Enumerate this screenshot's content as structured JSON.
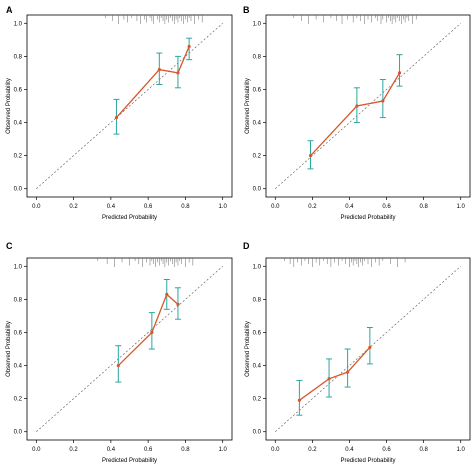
{
  "colors": {
    "line": "#d9572b",
    "errorbar": "#2aa6a1",
    "reference": "#555555",
    "axis": "#000000",
    "rug": "#666666"
  },
  "chart_data": [
    {
      "panel": "A",
      "type": "calibration",
      "xlabel": "Predicted Probability",
      "ylabel": "Observed Probability",
      "xlim": [
        -0.05,
        1.05
      ],
      "ylim": [
        -0.05,
        1.05
      ],
      "xticks": [
        "0.0",
        "0.2",
        "0.4",
        "0.6",
        "0.8",
        "1.0"
      ],
      "yticks": [
        "0.0",
        "0.2",
        "0.4",
        "0.6",
        "0.8",
        "1.0"
      ],
      "reference_line": "diagonal",
      "points": [
        {
          "x": 0.43,
          "y": 0.43,
          "lower": 0.33,
          "upper": 0.54
        },
        {
          "x": 0.66,
          "y": 0.72,
          "lower": 0.63,
          "upper": 0.82
        },
        {
          "x": 0.76,
          "y": 0.7,
          "lower": 0.61,
          "upper": 0.8
        },
        {
          "x": 0.82,
          "y": 0.86,
          "lower": 0.78,
          "upper": 0.91
        }
      ],
      "rug": [
        0.37,
        0.41,
        0.44,
        0.47,
        0.49,
        0.51,
        0.54,
        0.56,
        0.58,
        0.59,
        0.61,
        0.62,
        0.63,
        0.65,
        0.66,
        0.67,
        0.68,
        0.69,
        0.7,
        0.71,
        0.72,
        0.73,
        0.74,
        0.75,
        0.76,
        0.77,
        0.78,
        0.79,
        0.8,
        0.81,
        0.82,
        0.83,
        0.85,
        0.87,
        0.89
      ]
    },
    {
      "panel": "B",
      "type": "calibration",
      "xlabel": "Predicted Probability",
      "ylabel": "Observed Probability",
      "xlim": [
        -0.05,
        1.05
      ],
      "ylim": [
        -0.05,
        1.05
      ],
      "xticks": [
        "0.0",
        "0.2",
        "0.4",
        "0.6",
        "0.8",
        "1.0"
      ],
      "yticks": [
        "0.0",
        "0.2",
        "0.4",
        "0.6",
        "0.8",
        "1.0"
      ],
      "reference_line": "diagonal",
      "points": [
        {
          "x": 0.19,
          "y": 0.2,
          "lower": 0.12,
          "upper": 0.29
        },
        {
          "x": 0.44,
          "y": 0.5,
          "lower": 0.4,
          "upper": 0.61
        },
        {
          "x": 0.58,
          "y": 0.53,
          "lower": 0.43,
          "upper": 0.66
        },
        {
          "x": 0.67,
          "y": 0.7,
          "lower": 0.62,
          "upper": 0.81
        }
      ],
      "rug": [
        0.1,
        0.14,
        0.18,
        0.22,
        0.26,
        0.3,
        0.33,
        0.36,
        0.39,
        0.42,
        0.44,
        0.46,
        0.48,
        0.5,
        0.52,
        0.54,
        0.55,
        0.57,
        0.58,
        0.6,
        0.61,
        0.62,
        0.63,
        0.64,
        0.65,
        0.66,
        0.67,
        0.68,
        0.69,
        0.7,
        0.71,
        0.72,
        0.74,
        0.76
      ]
    },
    {
      "panel": "C",
      "type": "calibration",
      "xlabel": "Predicted Probability",
      "ylabel": "Observed Probability",
      "xlim": [
        -0.05,
        1.05
      ],
      "ylim": [
        -0.05,
        1.05
      ],
      "xticks": [
        "0.0",
        "0.2",
        "0.4",
        "0.6",
        "0.8",
        "1.0"
      ],
      "yticks": [
        "0.0",
        "0.2",
        "0.4",
        "0.6",
        "0.8",
        "1.0"
      ],
      "reference_line": "diagonal",
      "points": [
        {
          "x": 0.44,
          "y": 0.4,
          "lower": 0.3,
          "upper": 0.52
        },
        {
          "x": 0.62,
          "y": 0.6,
          "lower": 0.5,
          "upper": 0.72
        },
        {
          "x": 0.7,
          "y": 0.83,
          "lower": 0.74,
          "upper": 0.92
        },
        {
          "x": 0.76,
          "y": 0.77,
          "lower": 0.68,
          "upper": 0.87
        }
      ],
      "rug": [
        0.33,
        0.38,
        0.42,
        0.46,
        0.5,
        0.53,
        0.55,
        0.57,
        0.59,
        0.61,
        0.62,
        0.63,
        0.64,
        0.65,
        0.66,
        0.67,
        0.68,
        0.69,
        0.7,
        0.71,
        0.72,
        0.73,
        0.74,
        0.75,
        0.76,
        0.77,
        0.78,
        0.8,
        0.82,
        0.84
      ]
    },
    {
      "panel": "D",
      "type": "calibration",
      "xlabel": "Predicted Probability",
      "ylabel": "Observed Probability",
      "xlim": [
        -0.05,
        1.05
      ],
      "ylim": [
        -0.05,
        1.05
      ],
      "xticks": [
        "0.0",
        "0.2",
        "0.4",
        "0.6",
        "0.8",
        "1.0"
      ],
      "yticks": [
        "0.0",
        "0.2",
        "0.4",
        "0.6",
        "0.8",
        "1.0"
      ],
      "reference_line": "diagonal",
      "points": [
        {
          "x": 0.13,
          "y": 0.19,
          "lower": 0.1,
          "upper": 0.31
        },
        {
          "x": 0.29,
          "y": 0.32,
          "lower": 0.21,
          "upper": 0.44
        },
        {
          "x": 0.39,
          "y": 0.36,
          "lower": 0.27,
          "upper": 0.5
        },
        {
          "x": 0.51,
          "y": 0.51,
          "lower": 0.41,
          "upper": 0.63
        }
      ],
      "rug": [
        0.05,
        0.08,
        0.1,
        0.12,
        0.14,
        0.16,
        0.18,
        0.2,
        0.22,
        0.24,
        0.26,
        0.28,
        0.3,
        0.32,
        0.34,
        0.36,
        0.38,
        0.4,
        0.41,
        0.42,
        0.43,
        0.44,
        0.45,
        0.46,
        0.47,
        0.48,
        0.5,
        0.52,
        0.54,
        0.56,
        0.58,
        0.62,
        0.66,
        0.7
      ]
    }
  ]
}
